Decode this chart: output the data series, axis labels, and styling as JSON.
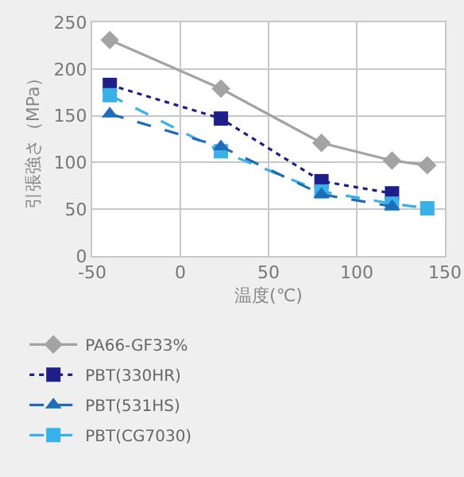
{
  "chart_data": {
    "type": "line",
    "xlabel": "温度(℃)",
    "ylabel": "引張強さ（MPa）",
    "xlim": [
      -50,
      150
    ],
    "xticks": [
      -50,
      0,
      50,
      100,
      150
    ],
    "ylim": [
      0,
      250
    ],
    "yticks": [
      0,
      50,
      100,
      150,
      200,
      250
    ],
    "grid": true,
    "legend": "bottom",
    "series": [
      {
        "name": "PA66-GF33%",
        "color": "#a3a3a3",
        "marker": "diamond",
        "line_style": "solid",
        "x": [
          -40,
          23,
          80,
          120,
          140
        ],
        "values": [
          231,
          179,
          121,
          102,
          97
        ]
      },
      {
        "name": "PBT(330HR)",
        "color": "#1f1f8a",
        "marker": "square",
        "line_style": "dotted",
        "x": [
          -40,
          23,
          80,
          120
        ],
        "values": [
          183,
          147,
          80,
          67
        ]
      },
      {
        "name": "PBT(531HS)",
        "color": "#1f6cb8",
        "marker": "triangle",
        "line_style": "dashed",
        "x": [
          -40,
          23,
          80,
          120
        ],
        "values": [
          152,
          117,
          66,
          53
        ]
      },
      {
        "name": "PBT(CG7030)",
        "color": "#38b0e8",
        "marker": "square",
        "line_style": "dashed",
        "x": [
          -40,
          23,
          80,
          120,
          140
        ],
        "values": [
          172,
          112,
          69,
          56,
          51
        ]
      }
    ]
  }
}
